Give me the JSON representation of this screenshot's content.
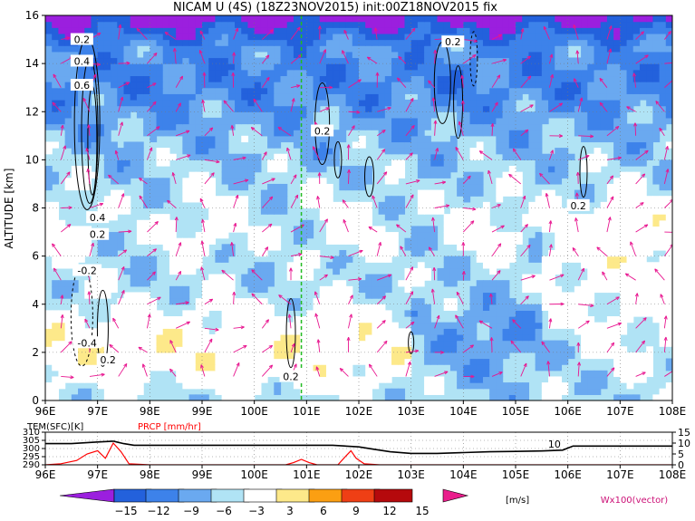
{
  "title": "NICAM U (4S) (18Z23NOV2015) init:00Z18NOV2015 fix",
  "chart_data": [
    {
      "type": "heatmap",
      "title": "NICAM U (4S) (18Z23NOV2015) init:00Z18NOV2015 fix",
      "xlabel": "",
      "ylabel": "ALTITUDE [km]",
      "x_ticks": [
        "96E",
        "97E",
        "98E",
        "99E",
        "100E",
        "101E",
        "102E",
        "103E",
        "104E",
        "105E",
        "106E",
        "107E",
        "108E"
      ],
      "y_ticks": [
        "0",
        "2",
        "4",
        "6",
        "8",
        "10",
        "12",
        "14",
        "16"
      ],
      "xlim": [
        96,
        108
      ],
      "ylim": [
        0,
        16
      ],
      "reference_line_x": 100.9,
      "vector_label": "Wx100(vector)",
      "contour_labels": [
        {
          "text": "0.2",
          "x": 96.7,
          "y": 15.0
        },
        {
          "text": "0.4",
          "x": 96.7,
          "y": 14.1
        },
        {
          "text": "0.6",
          "x": 96.7,
          "y": 13.1
        },
        {
          "text": "0.4",
          "x": 97.0,
          "y": 7.6
        },
        {
          "text": "0.2",
          "x": 97.0,
          "y": 6.9
        },
        {
          "text": "-0.2",
          "x": 96.8,
          "y": 5.4
        },
        {
          "text": "-0.4",
          "x": 96.8,
          "y": 2.4
        },
        {
          "text": "0.2",
          "x": 97.2,
          "y": 1.7
        },
        {
          "text": "0.2",
          "x": 100.7,
          "y": 1.0
        },
        {
          "text": "0.2",
          "x": 101.3,
          "y": 11.2
        },
        {
          "text": "0.2",
          "x": 103.8,
          "y": 14.9
        },
        {
          "text": "0.2",
          "x": 106.2,
          "y": 8.1
        }
      ],
      "grid": true
    },
    {
      "type": "line",
      "title": "",
      "left_label": "TEM(SFC)[K]",
      "right_label": "PRCP [mm/hr]",
      "x_ticks": [
        "96E",
        "97E",
        "98E",
        "99E",
        "100E",
        "101E",
        "102E",
        "103E",
        "104E",
        "105E",
        "106E",
        "107E",
        "108E"
      ],
      "xlim": [
        96,
        108
      ],
      "left_ticks": [
        "310",
        "305",
        "300",
        "295",
        "290"
      ],
      "right_ticks": [
        "15",
        "10",
        "5",
        "0"
      ],
      "left_ylim": [
        290,
        310
      ],
      "right_ylim": [
        0,
        15
      ],
      "series": [
        {
          "name": "TEM(SFC)[K]",
          "color": "#000000",
          "axis": "left",
          "x": [
            96,
            96.5,
            97,
            97.3,
            97.5,
            97.7,
            98,
            99,
            100,
            101,
            101.5,
            102,
            102.3,
            102.6,
            103,
            103.5,
            104,
            104.5,
            105,
            105.5,
            105.9,
            106.1,
            107,
            108
          ],
          "y": [
            303,
            303,
            304,
            304.5,
            303,
            302,
            302,
            302,
            302,
            302,
            302,
            301,
            299.5,
            298,
            297,
            297,
            297.5,
            298,
            298.2,
            298.5,
            299,
            301.5,
            301.5,
            301.5
          ]
        },
        {
          "name": "PRCP [mm/hr]",
          "color": "#ff0000",
          "axis": "right",
          "x": [
            96,
            96.3,
            96.6,
            96.8,
            97.0,
            97.15,
            97.3,
            97.45,
            97.6,
            98,
            100.6,
            100.75,
            100.9,
            101.05,
            101.2,
            101.6,
            101.75,
            101.85,
            101.95,
            102.1,
            102.4,
            108
          ],
          "y": [
            0,
            0.5,
            2,
            5,
            6.5,
            3,
            10,
            6,
            0.5,
            0,
            0,
            1,
            2.5,
            1,
            0,
            0,
            4,
            6.5,
            3,
            0.5,
            0,
            0
          ]
        }
      ],
      "annotations": [
        {
          "text": "10",
          "x": 105.9
        }
      ],
      "grid": true
    },
    {
      "type": "colorbar",
      "ticks": [
        "−15",
        "−12",
        "−9",
        "−6",
        "−3",
        "3",
        "6",
        "9",
        "12",
        "15"
      ],
      "unit": "[m/s]",
      "colors": [
        "#9b1fde",
        "#2361dc",
        "#3d82ea",
        "#6aa9f0",
        "#b0e3f5",
        "#ffffff",
        "#fde98a",
        "#fb9f12",
        "#ef3f15",
        "#b5090c",
        "#ea1d8c"
      ]
    }
  ]
}
